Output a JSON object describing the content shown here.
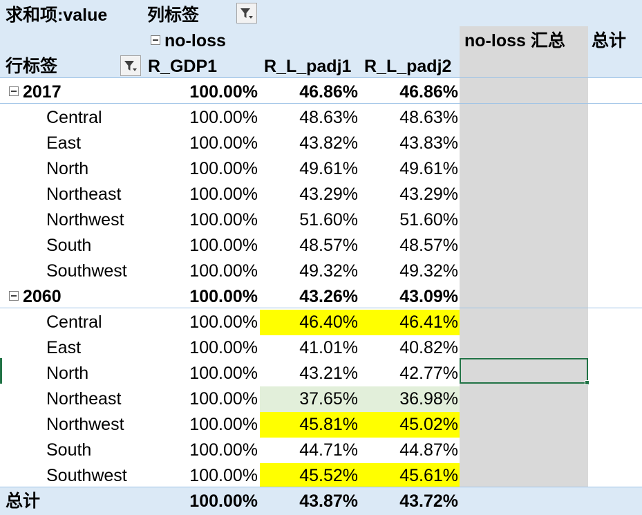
{
  "header": {
    "value_label": "求和项:value",
    "col_label": "列标签",
    "col_group": "no-loss",
    "row_label": "行标签",
    "cols": [
      "R_GDP1",
      "R_L_padj1",
      "R_L_padj2"
    ],
    "subtotal_label": "no-loss 汇总",
    "grand_label": "总计"
  },
  "groups": [
    {
      "year": "2017",
      "totals": [
        "100.00%",
        "46.86%",
        "46.86%"
      ],
      "rows": [
        {
          "name": "Central",
          "v": [
            "100.00%",
            "48.63%",
            "48.63%"
          ]
        },
        {
          "name": "East",
          "v": [
            "100.00%",
            "43.82%",
            "43.83%"
          ]
        },
        {
          "name": "North",
          "v": [
            "100.00%",
            "49.61%",
            "49.61%"
          ]
        },
        {
          "name": "Northeast",
          "v": [
            "100.00%",
            "43.29%",
            "43.29%"
          ]
        },
        {
          "name": "Northwest",
          "v": [
            "100.00%",
            "51.60%",
            "51.60%"
          ]
        },
        {
          "name": "South",
          "v": [
            "100.00%",
            "48.57%",
            "48.57%"
          ]
        },
        {
          "name": "Southwest",
          "v": [
            "100.00%",
            "49.32%",
            "49.32%"
          ]
        }
      ]
    },
    {
      "year": "2060",
      "totals": [
        "100.00%",
        "43.26%",
        "43.09%"
      ],
      "rows": [
        {
          "name": "Central",
          "v": [
            "100.00%",
            "46.40%",
            "46.41%"
          ],
          "hl": "yellow"
        },
        {
          "name": "East",
          "v": [
            "100.00%",
            "41.01%",
            "40.82%"
          ]
        },
        {
          "name": "North",
          "v": [
            "100.00%",
            "43.21%",
            "42.77%"
          ]
        },
        {
          "name": "Northeast",
          "v": [
            "100.00%",
            "37.65%",
            "36.98%"
          ],
          "hl": "green"
        },
        {
          "name": "Northwest",
          "v": [
            "100.00%",
            "45.81%",
            "45.02%"
          ],
          "hl": "yellow"
        },
        {
          "name": "South",
          "v": [
            "100.00%",
            "44.71%",
            "44.87%"
          ]
        },
        {
          "name": "Southwest",
          "v": [
            "100.00%",
            "45.52%",
            "45.61%"
          ],
          "hl": "yellow"
        }
      ]
    }
  ],
  "grand_total": {
    "label": "总计",
    "v": [
      "100.00%",
      "43.87%",
      "43.72%"
    ]
  },
  "colors": {
    "header_bg": "#dbe9f6",
    "highlight_yellow": "#ffff00",
    "highlight_green": "#e2efda",
    "subtotal_col": "#d9d9d9",
    "selection": "#217346"
  }
}
